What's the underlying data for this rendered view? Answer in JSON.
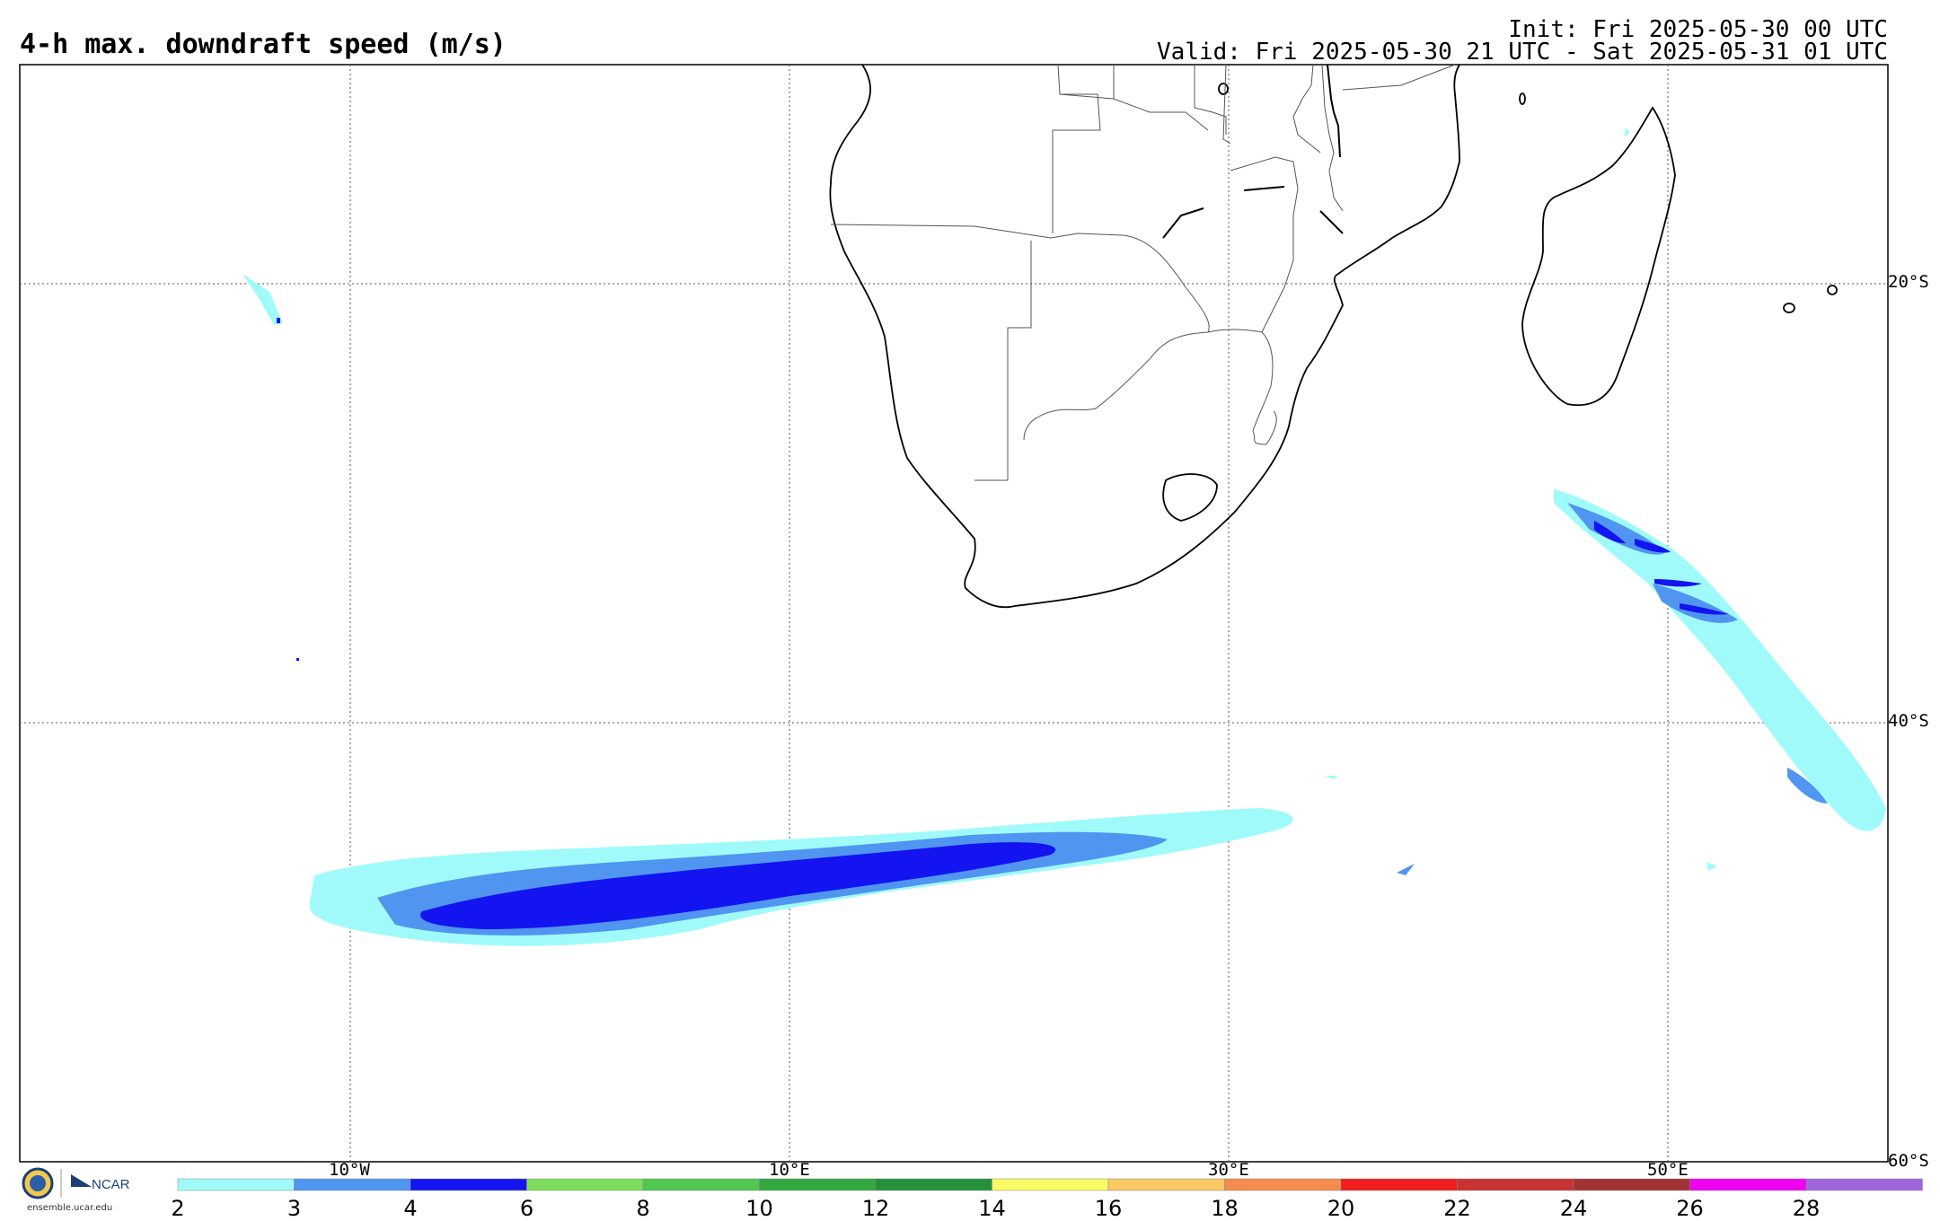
{
  "title": "4-h max. downdraft speed (m/s)",
  "init": "Init: Fri 2025-05-30 00 UTC",
  "valid": "Valid: Fri 2025-05-30 21 UTC - Sat 2025-05-31 01 UTC",
  "lat_labels": [
    "20°S",
    "40°S",
    "60°S"
  ],
  "lon_labels": [
    "10°W",
    "10°E",
    "30°E",
    "50°E"
  ],
  "colorbar": {
    "ticks": [
      "2",
      "3",
      "4",
      "6",
      "8",
      "10",
      "12",
      "14",
      "16",
      "18",
      "20",
      "22",
      "24",
      "26",
      "28"
    ],
    "colors": [
      "#a0fafa",
      "#5095f0",
      "#1414f0",
      "#7ddc5a",
      "#50c850",
      "#32a93e",
      "#24913a",
      "#fafa64",
      "#fac864",
      "#f58c50",
      "#f01e1e",
      "#c83232",
      "#a03232",
      "#f000f0",
      "#a064dc"
    ]
  },
  "logo": {
    "org": "NCAR",
    "seal": "NSF",
    "url": "ensemble.ucar.edu"
  }
}
